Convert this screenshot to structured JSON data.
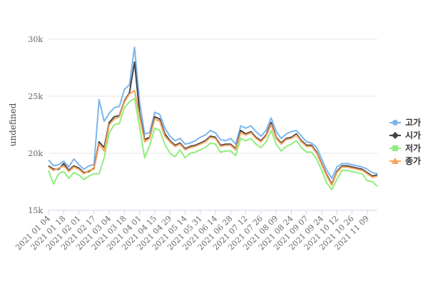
{
  "chart_data": {
    "type": "line",
    "y_label": "undefined",
    "categories": [
      "2021 01 04",
      null,
      null,
      "2021 01 18",
      null,
      null,
      "2021 02 01",
      null,
      null,
      "2021 02 17",
      null,
      null,
      "2021 03 04",
      null,
      null,
      "2021 03 18",
      null,
      null,
      "2021 04 01",
      null,
      null,
      "2021 04 15",
      null,
      null,
      "2021 04 29",
      null,
      null,
      "2021 05 14",
      null,
      null,
      "2021 05 31",
      null,
      null,
      "2021 06 14",
      null,
      null,
      "2021 06 28",
      null,
      null,
      "2021 07 12",
      null,
      null,
      "2021 07 26",
      null,
      null,
      "2021 08 09",
      null,
      null,
      "2021 08 24",
      null,
      null,
      "2021 09 07",
      null,
      null,
      "2021 09 24",
      null,
      null,
      "2021 10 12",
      null,
      null,
      "2021 10 26",
      null,
      null,
      "2021 11 09",
      null,
      null
    ],
    "series": [
      {
        "name": "고가",
        "color": "#7cb5ec",
        "marker": "circle",
        "values": [
          19400,
          18900,
          19000,
          19300,
          18800,
          19500,
          19000,
          18600,
          18900,
          19000,
          24700,
          22800,
          23500,
          24000,
          24100,
          25600,
          26000,
          29300,
          24500,
          21700,
          21800,
          23600,
          23400,
          22200,
          21500,
          21100,
          21300,
          20800,
          20900,
          21100,
          21400,
          21600,
          22000,
          21800,
          21200,
          21100,
          21300,
          20800,
          22400,
          22200,
          22400,
          21900,
          21500,
          22000,
          23100,
          21900,
          21300,
          21700,
          21900,
          22000,
          21500,
          21000,
          20900,
          20500,
          19500,
          18500,
          17800,
          18800,
          19100,
          19100,
          19000,
          18900,
          18800,
          18600,
          18300,
          18200
        ]
      },
      {
        "name": "시가",
        "color": "#434348",
        "marker": "diamond",
        "values": [
          18900,
          18600,
          18600,
          19100,
          18500,
          18900,
          18700,
          18300,
          18400,
          18700,
          21000,
          20500,
          22700,
          23200,
          23300,
          24600,
          25300,
          28000,
          23500,
          21200,
          21400,
          23200,
          23000,
          21700,
          21100,
          20700,
          20900,
          20400,
          20600,
          20700,
          20900,
          21100,
          21500,
          21400,
          20700,
          20800,
          20800,
          20400,
          22000,
          21700,
          21900,
          21400,
          21100,
          21600,
          22700,
          21400,
          20900,
          21300,
          21400,
          21700,
          21100,
          20700,
          20700,
          20100,
          19100,
          18100,
          17300,
          18400,
          18900,
          18900,
          18800,
          18700,
          18600,
          18300,
          18000,
          18100
        ]
      },
      {
        "name": "저가",
        "color": "#90ed7d",
        "marker": "square",
        "values": [
          18500,
          17300,
          18200,
          18400,
          17800,
          18300,
          18100,
          17700,
          18000,
          18200,
          18200,
          19600,
          21800,
          22500,
          22600,
          24000,
          24500,
          24800,
          22300,
          19600,
          20700,
          22200,
          22000,
          20800,
          20000,
          19700,
          20300,
          19600,
          20000,
          20100,
          20300,
          20500,
          20900,
          20800,
          20100,
          20200,
          20200,
          19800,
          21300,
          21100,
          21300,
          20800,
          20500,
          21000,
          22000,
          20800,
          20200,
          20600,
          20800,
          21100,
          20500,
          20100,
          20100,
          19500,
          18500,
          17400,
          16800,
          17700,
          18500,
          18500,
          18400,
          18300,
          18200,
          17600,
          17500,
          17100
        ]
      },
      {
        "name": "종가",
        "color": "#f7a35c",
        "marker": "triangle",
        "values": [
          18800,
          18500,
          18700,
          18900,
          18400,
          18800,
          18600,
          18200,
          18500,
          18600,
          20800,
          20200,
          22500,
          23000,
          23200,
          24500,
          25200,
          25500,
          23200,
          21000,
          21300,
          23000,
          22800,
          21500,
          21000,
          20600,
          20800,
          20300,
          20500,
          20600,
          20800,
          21000,
          21400,
          21300,
          20600,
          20700,
          20700,
          20300,
          21800,
          21600,
          21800,
          21300,
          21000,
          21500,
          22500,
          21300,
          20800,
          21200,
          21300,
          21600,
          21000,
          20600,
          20600,
          20000,
          19000,
          18000,
          17200,
          18300,
          18800,
          18800,
          18700,
          18600,
          18500,
          18200,
          17900,
          18000
        ]
      }
    ],
    "ylim": [
      15000,
      30000
    ],
    "yticks": [
      {
        "value": 15000,
        "label": "15k"
      },
      {
        "value": 20000,
        "label": "20k"
      },
      {
        "value": 25000,
        "label": "25k"
      },
      {
        "value": 30000,
        "label": "30k"
      }
    ],
    "grid": true,
    "legend": "right"
  }
}
